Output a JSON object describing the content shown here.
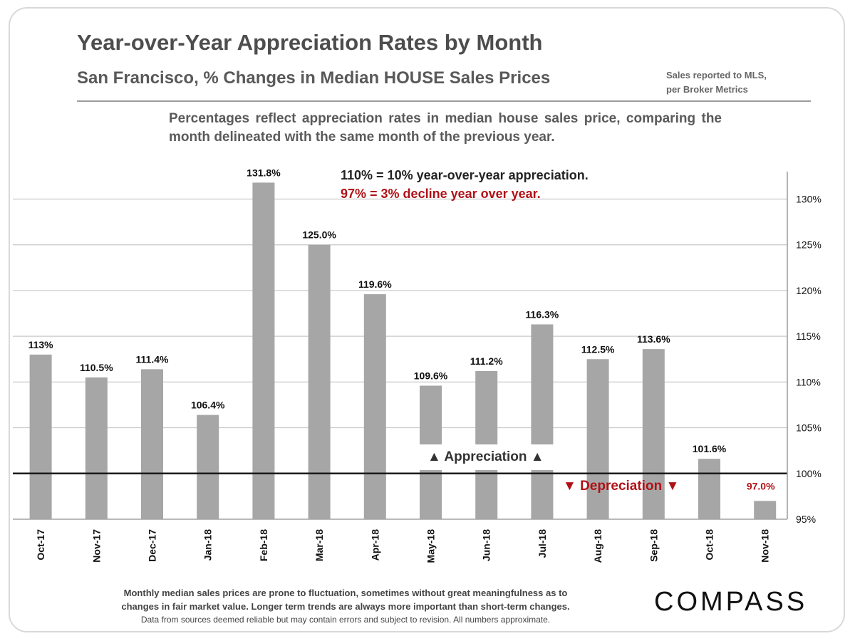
{
  "header": {
    "title": "Year-over-Year Appreciation Rates by Month",
    "subtitle": "San Francisco, % Changes in Median HOUSE Sales Prices",
    "source_line1": "Sales reported to MLS,",
    "source_line2": "per Broker Metrics",
    "description": "Percentages reflect appreciation rates in median house sales price, comparing the month delineated with the same month of the previous year."
  },
  "legend_note": {
    "positive": "110% = 10% year-over-year appreciation.",
    "negative": "97% = 3% decline year over year."
  },
  "annotations": {
    "appreciation": "▲ Appreciation ▲",
    "depreciation": "▼ Depreciation ▼"
  },
  "footer": {
    "line1": "Monthly median sales prices are prone to fluctuation, sometimes without great meaningfulness as to",
    "line2": "changes in fair market value. Longer term trends are always more important than short-term changes.",
    "line3": "Data from sources deemed reliable but may contain errors and subject to revision. All numbers approximate."
  },
  "logo": "COMPASS",
  "colors": {
    "bar": "#a6a6a6",
    "negative_text": "#b01116",
    "baseline": "#1a1a1a",
    "grid": "#c8c8c8"
  },
  "chart_data": {
    "type": "bar",
    "categories": [
      "Oct-17",
      "Nov-17",
      "Dec-17",
      "Jan-18",
      "Feb-18",
      "Mar-18",
      "Apr-18",
      "May-18",
      "Jun-18",
      "Jul-18",
      "Aug-18",
      "Sep-18",
      "Oct-18",
      "Nov-18"
    ],
    "values": [
      113,
      110.5,
      111.4,
      106.4,
      131.8,
      125.0,
      119.6,
      109.6,
      111.2,
      116.3,
      112.5,
      113.6,
      101.6,
      97.0
    ],
    "data_labels": [
      "113%",
      "110.5%",
      "111.4%",
      "106.4%",
      "131.8%",
      "125.0%",
      "119.6%",
      "109.6%",
      "111.2%",
      "116.3%",
      "112.5%",
      "113.6%",
      "101.6%",
      "97.0%"
    ],
    "ylim": [
      95,
      133
    ],
    "yticks": [
      95,
      100,
      105,
      110,
      115,
      120,
      125,
      130
    ],
    "ytick_labels": [
      "95%",
      "100%",
      "105%",
      "110%",
      "115%",
      "120%",
      "125%",
      "130%"
    ],
    "reference_line": 100,
    "y_axis_side": "right",
    "grid": true
  }
}
